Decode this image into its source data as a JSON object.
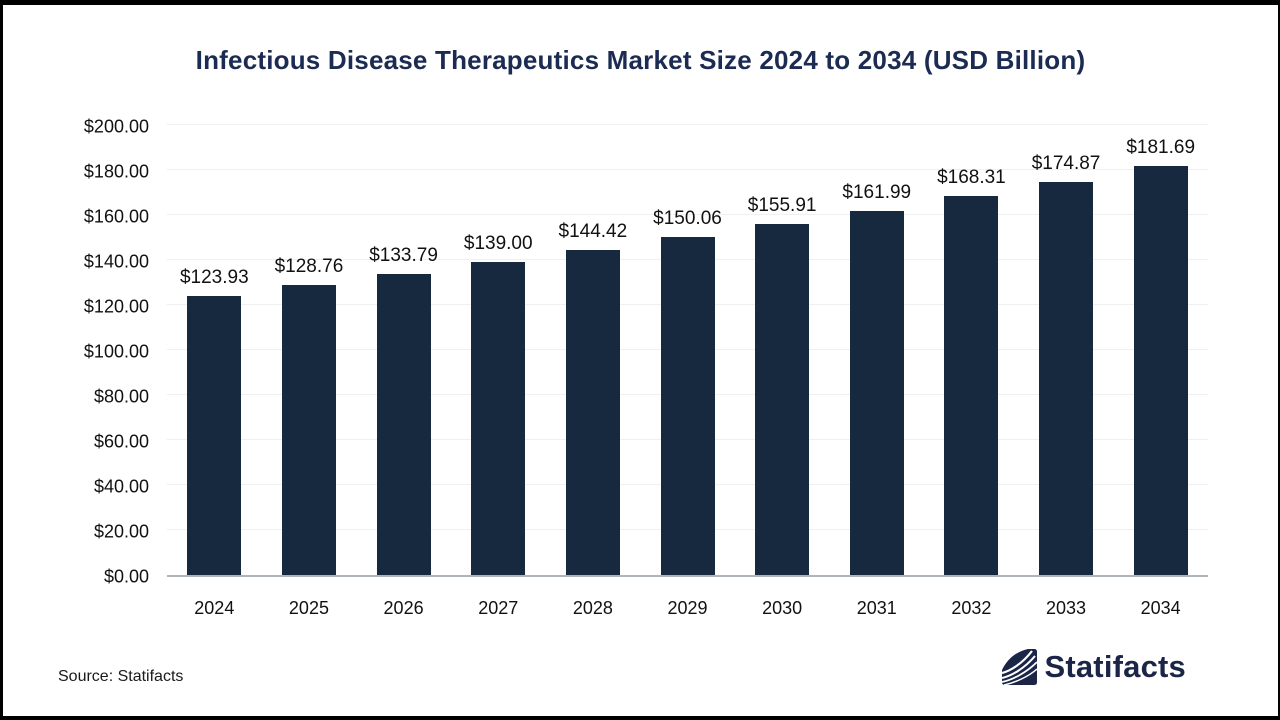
{
  "header": {
    "title": "Infectious Disease Therapeutics Market Size 2024 to 2034 (USD Billion)"
  },
  "chart_data": {
    "type": "bar",
    "title": "Infectious Disease Therapeutics Market Size 2024 to 2034 (USD Billion)",
    "categories": [
      "2024",
      "2025",
      "2026",
      "2027",
      "2028",
      "2029",
      "2030",
      "2031",
      "2032",
      "2033",
      "2034"
    ],
    "values": [
      123.93,
      128.76,
      133.79,
      139.0,
      144.42,
      150.06,
      155.91,
      161.99,
      168.31,
      174.87,
      181.69
    ],
    "value_labels": [
      "$123.93",
      "$128.76",
      "$133.79",
      "$139.00",
      "$144.42",
      "$150.06",
      "$155.91",
      "$161.99",
      "$168.31",
      "$174.87",
      "$181.69"
    ],
    "xlabel": "",
    "ylabel": "",
    "ylim": [
      0,
      200
    ],
    "y_ticks": [
      0,
      20,
      40,
      60,
      80,
      100,
      120,
      140,
      160,
      180,
      200
    ],
    "y_tick_labels": [
      "$0.00",
      "$20.00",
      "$40.00",
      "$60.00",
      "$80.00",
      "$100.00",
      "$120.00",
      "$140.00",
      "$160.00",
      "$180.00",
      "$200.00"
    ],
    "grid": true,
    "legend_position": "none",
    "bar_color": "#16293e"
  },
  "footer": {
    "source_label": "Source: Statifacts",
    "brand_name": "Statifacts"
  },
  "colors": {
    "bar": "#16293e",
    "title": "#1b2b52",
    "brand_navy": "#1b2548",
    "axis_line": "#b0b5ba",
    "gridline": "#f0f0f2",
    "label_text": "#111111"
  }
}
